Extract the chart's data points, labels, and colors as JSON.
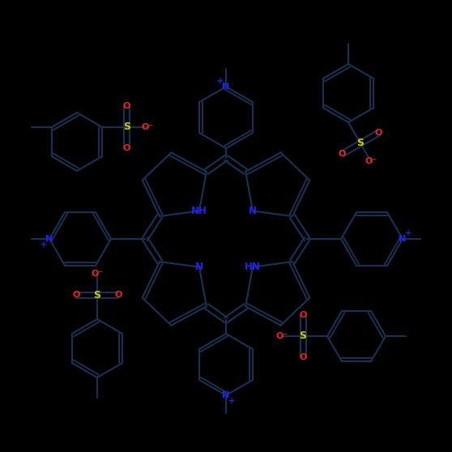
{
  "bg_color": "#000000",
  "bond_color": "#1a3050",
  "bond_width": 1.6,
  "N_color": "#2222ee",
  "O_color": "#ee2222",
  "S_color": "#cccc00",
  "figsize": [
    5.58,
    5.58
  ],
  "dpi": 100,
  "xlim": [
    0,
    558
  ],
  "ylim": [
    0,
    558
  ]
}
